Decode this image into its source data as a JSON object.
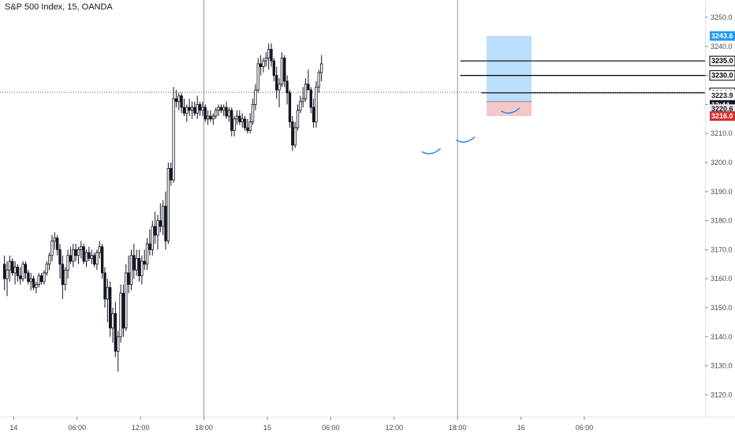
{
  "header": {
    "title": "S&P 500 Index, 15, OANDA"
  },
  "colors": {
    "candle": "#131722",
    "background": "#ffffff",
    "axis_text": "#4a4a4a",
    "target_zone": "#bbdefb",
    "stop_zone": "#f4c7c9",
    "target_label": "#2196f3",
    "stop_label": "#d32f2f",
    "annotation_arc": "#1e88e5",
    "price_line": "#555555"
  },
  "chart_data": {
    "type": "candlestick",
    "title": "S&P 500 Index, 15, OANDA",
    "xlabel": "",
    "ylabel": "",
    "ylim": [
      3115,
      3255
    ],
    "grid": false,
    "y_ticks": [
      "3250.0",
      "3240.0",
      "3230.0",
      "3220.0",
      "3210.0",
      "3200.0",
      "3190.0",
      "3180.0",
      "3170.0",
      "3160.0",
      "3150.0",
      "3140.0",
      "3130.0",
      "3120.0"
    ],
    "x_ticks": [
      {
        "label": "14",
        "bar": 4
      },
      {
        "label": "06:00",
        "bar": 28
      },
      {
        "label": "12:00",
        "bar": 52
      },
      {
        "label": "18:00",
        "bar": 76
      },
      {
        "label": "15",
        "bar": 100
      },
      {
        "label": "06:00",
        "bar": 124
      },
      {
        "label": "12:00",
        "bar": 148
      },
      {
        "label": "18:00",
        "bar": 172
      },
      {
        "label": "16",
        "bar": 196
      },
      {
        "label": "06:00",
        "bar": 220
      }
    ],
    "session_lines_bar": [
      76,
      172
    ],
    "price_labels": [
      {
        "text": "3243.6",
        "value": 3243.6,
        "style": "target"
      },
      {
        "text": "3235.0",
        "value": 3235.0,
        "style": "level"
      },
      {
        "text": "3230.0",
        "value": 3230.0,
        "style": "level"
      },
      {
        "text": "3224.0",
        "value": 3224.0,
        "style": "level"
      },
      {
        "text": "3223.9",
        "value": 3223.9,
        "style": "plain"
      },
      {
        "text": "12:44",
        "value": 3221.2,
        "style": "dark"
      },
      {
        "text": "3220.6",
        "value": 3220.6,
        "style": "grey"
      },
      {
        "text": "3216.0",
        "value": 3216.0,
        "style": "stop"
      }
    ],
    "levels": [
      {
        "value": 3235.0,
        "from_bar": 173
      },
      {
        "value": 3230.0,
        "from_bar": 173
      },
      {
        "value": 3224.0,
        "from_bar": 181
      }
    ],
    "position": {
      "entry": 3221.0,
      "target": 3243.6,
      "stop": 3216.0,
      "from_bar": 183,
      "to_bar": 200
    },
    "crosshair_value": 3224.2,
    "candles": [
      {
        "o": 3165,
        "h": 3168,
        "l": 3156,
        "c": 3160
      },
      {
        "o": 3160,
        "h": 3166,
        "l": 3154,
        "c": 3163
      },
      {
        "o": 3163,
        "h": 3168,
        "l": 3159,
        "c": 3166
      },
      {
        "o": 3166,
        "h": 3167,
        "l": 3161,
        "c": 3162
      },
      {
        "o": 3162,
        "h": 3166,
        "l": 3158,
        "c": 3164
      },
      {
        "o": 3164,
        "h": 3165,
        "l": 3159,
        "c": 3161
      },
      {
        "o": 3161,
        "h": 3164,
        "l": 3158,
        "c": 3160
      },
      {
        "o": 3160,
        "h": 3166,
        "l": 3159,
        "c": 3165
      },
      {
        "o": 3165,
        "h": 3166,
        "l": 3160,
        "c": 3162
      },
      {
        "o": 3162,
        "h": 3163,
        "l": 3158,
        "c": 3159
      },
      {
        "o": 3159,
        "h": 3162,
        "l": 3156,
        "c": 3160
      },
      {
        "o": 3160,
        "h": 3161,
        "l": 3156,
        "c": 3157
      },
      {
        "o": 3157,
        "h": 3159,
        "l": 3155,
        "c": 3158
      },
      {
        "o": 3158,
        "h": 3162,
        "l": 3157,
        "c": 3161
      },
      {
        "o": 3161,
        "h": 3162,
        "l": 3158,
        "c": 3159
      },
      {
        "o": 3159,
        "h": 3163,
        "l": 3158,
        "c": 3162
      },
      {
        "o": 3162,
        "h": 3166,
        "l": 3161,
        "c": 3165
      },
      {
        "o": 3165,
        "h": 3169,
        "l": 3163,
        "c": 3168
      },
      {
        "o": 3168,
        "h": 3175,
        "l": 3166,
        "c": 3173
      },
      {
        "o": 3173,
        "h": 3176,
        "l": 3170,
        "c": 3174
      },
      {
        "o": 3174,
        "h": 3175,
        "l": 3168,
        "c": 3170
      },
      {
        "o": 3170,
        "h": 3172,
        "l": 3160,
        "c": 3165
      },
      {
        "o": 3165,
        "h": 3168,
        "l": 3153,
        "c": 3158
      },
      {
        "o": 3158,
        "h": 3164,
        "l": 3156,
        "c": 3163
      },
      {
        "o": 3163,
        "h": 3170,
        "l": 3160,
        "c": 3168
      },
      {
        "o": 3168,
        "h": 3171,
        "l": 3165,
        "c": 3166
      },
      {
        "o": 3166,
        "h": 3172,
        "l": 3164,
        "c": 3170
      },
      {
        "o": 3170,
        "h": 3172,
        "l": 3166,
        "c": 3168
      },
      {
        "o": 3168,
        "h": 3171,
        "l": 3165,
        "c": 3170
      },
      {
        "o": 3170,
        "h": 3173,
        "l": 3167,
        "c": 3171
      },
      {
        "o": 3171,
        "h": 3172,
        "l": 3165,
        "c": 3166
      },
      {
        "o": 3166,
        "h": 3170,
        "l": 3164,
        "c": 3169
      },
      {
        "o": 3169,
        "h": 3171,
        "l": 3166,
        "c": 3167
      },
      {
        "o": 3167,
        "h": 3170,
        "l": 3165,
        "c": 3168
      },
      {
        "o": 3168,
        "h": 3169,
        "l": 3164,
        "c": 3165
      },
      {
        "o": 3165,
        "h": 3170,
        "l": 3163,
        "c": 3169
      },
      {
        "o": 3169,
        "h": 3173,
        "l": 3167,
        "c": 3171
      },
      {
        "o": 3171,
        "h": 3172,
        "l": 3160,
        "c": 3162
      },
      {
        "o": 3162,
        "h": 3164,
        "l": 3150,
        "c": 3153
      },
      {
        "o": 3153,
        "h": 3160,
        "l": 3145,
        "c": 3157
      },
      {
        "o": 3157,
        "h": 3159,
        "l": 3140,
        "c": 3143
      },
      {
        "o": 3143,
        "h": 3150,
        "l": 3138,
        "c": 3148
      },
      {
        "o": 3148,
        "h": 3152,
        "l": 3133,
        "c": 3135
      },
      {
        "o": 3135,
        "h": 3142,
        "l": 3128,
        "c": 3140
      },
      {
        "o": 3140,
        "h": 3158,
        "l": 3138,
        "c": 3155
      },
      {
        "o": 3155,
        "h": 3158,
        "l": 3140,
        "c": 3143
      },
      {
        "o": 3143,
        "h": 3165,
        "l": 3142,
        "c": 3162
      },
      {
        "o": 3162,
        "h": 3168,
        "l": 3155,
        "c": 3158
      },
      {
        "o": 3158,
        "h": 3170,
        "l": 3156,
        "c": 3168
      },
      {
        "o": 3168,
        "h": 3172,
        "l": 3160,
        "c": 3163
      },
      {
        "o": 3163,
        "h": 3170,
        "l": 3161,
        "c": 3167
      },
      {
        "o": 3167,
        "h": 3170,
        "l": 3159,
        "c": 3161
      },
      {
        "o": 3161,
        "h": 3168,
        "l": 3158,
        "c": 3166
      },
      {
        "o": 3166,
        "h": 3170,
        "l": 3163,
        "c": 3165
      },
      {
        "o": 3165,
        "h": 3174,
        "l": 3163,
        "c": 3172
      },
      {
        "o": 3172,
        "h": 3177,
        "l": 3168,
        "c": 3170
      },
      {
        "o": 3170,
        "h": 3180,
        "l": 3168,
        "c": 3178
      },
      {
        "o": 3178,
        "h": 3183,
        "l": 3172,
        "c": 3175
      },
      {
        "o": 3175,
        "h": 3182,
        "l": 3170,
        "c": 3180
      },
      {
        "o": 3180,
        "h": 3186,
        "l": 3176,
        "c": 3178
      },
      {
        "o": 3178,
        "h": 3187,
        "l": 3175,
        "c": 3185
      },
      {
        "o": 3185,
        "h": 3190,
        "l": 3170,
        "c": 3173
      },
      {
        "o": 3173,
        "h": 3200,
        "l": 3172,
        "c": 3198
      },
      {
        "o": 3198,
        "h": 3200,
        "l": 3192,
        "c": 3194
      },
      {
        "o": 3194,
        "h": 3226,
        "l": 3193,
        "c": 3222
      },
      {
        "o": 3222,
        "h": 3225,
        "l": 3219,
        "c": 3221
      },
      {
        "o": 3221,
        "h": 3224,
        "l": 3218,
        "c": 3223
      },
      {
        "o": 3223,
        "h": 3224,
        "l": 3217,
        "c": 3219
      },
      {
        "o": 3219,
        "h": 3222,
        "l": 3216,
        "c": 3217
      },
      {
        "o": 3217,
        "h": 3220,
        "l": 3214,
        "c": 3219
      },
      {
        "o": 3219,
        "h": 3222,
        "l": 3216,
        "c": 3218
      },
      {
        "o": 3218,
        "h": 3221,
        "l": 3215,
        "c": 3219
      },
      {
        "o": 3219,
        "h": 3221,
        "l": 3216,
        "c": 3217
      },
      {
        "o": 3217,
        "h": 3223,
        "l": 3215,
        "c": 3220
      },
      {
        "o": 3220,
        "h": 3221,
        "l": 3216,
        "c": 3218
      },
      {
        "o": 3218,
        "h": 3221,
        "l": 3216,
        "c": 3219
      },
      {
        "o": 3219,
        "h": 3220,
        "l": 3214,
        "c": 3215
      },
      {
        "o": 3215,
        "h": 3218,
        "l": 3213,
        "c": 3216
      },
      {
        "o": 3216,
        "h": 3218,
        "l": 3214,
        "c": 3215
      },
      {
        "o": 3215,
        "h": 3217,
        "l": 3213,
        "c": 3216
      },
      {
        "o": 3216,
        "h": 3219,
        "l": 3215,
        "c": 3218
      },
      {
        "o": 3218,
        "h": 3220,
        "l": 3216,
        "c": 3219
      },
      {
        "o": 3219,
        "h": 3220,
        "l": 3217,
        "c": 3218
      },
      {
        "o": 3218,
        "h": 3220,
        "l": 3216,
        "c": 3219
      },
      {
        "o": 3219,
        "h": 3221,
        "l": 3215,
        "c": 3216
      },
      {
        "o": 3216,
        "h": 3219,
        "l": 3214,
        "c": 3218
      },
      {
        "o": 3218,
        "h": 3219,
        "l": 3209,
        "c": 3211
      },
      {
        "o": 3211,
        "h": 3216,
        "l": 3209,
        "c": 3215
      },
      {
        "o": 3215,
        "h": 3218,
        "l": 3213,
        "c": 3216
      },
      {
        "o": 3216,
        "h": 3218,
        "l": 3213,
        "c": 3214
      },
      {
        "o": 3214,
        "h": 3217,
        "l": 3212,
        "c": 3215
      },
      {
        "o": 3215,
        "h": 3216,
        "l": 3211,
        "c": 3212
      },
      {
        "o": 3212,
        "h": 3215,
        "l": 3210,
        "c": 3211
      },
      {
        "o": 3211,
        "h": 3217,
        "l": 3210,
        "c": 3214
      },
      {
        "o": 3214,
        "h": 3222,
        "l": 3213,
        "c": 3220
      },
      {
        "o": 3220,
        "h": 3227,
        "l": 3218,
        "c": 3225
      },
      {
        "o": 3225,
        "h": 3236,
        "l": 3224,
        "c": 3234
      },
      {
        "o": 3234,
        "h": 3237,
        "l": 3230,
        "c": 3233
      },
      {
        "o": 3233,
        "h": 3236,
        "l": 3231,
        "c": 3235
      },
      {
        "o": 3235,
        "h": 3238,
        "l": 3233,
        "c": 3236
      },
      {
        "o": 3236,
        "h": 3241,
        "l": 3232,
        "c": 3239
      },
      {
        "o": 3239,
        "h": 3241,
        "l": 3233,
        "c": 3235
      },
      {
        "o": 3235,
        "h": 3236,
        "l": 3228,
        "c": 3230
      },
      {
        "o": 3230,
        "h": 3233,
        "l": 3222,
        "c": 3225
      },
      {
        "o": 3225,
        "h": 3229,
        "l": 3219,
        "c": 3227
      },
      {
        "o": 3227,
        "h": 3238,
        "l": 3226,
        "c": 3236
      },
      {
        "o": 3236,
        "h": 3237,
        "l": 3226,
        "c": 3228
      },
      {
        "o": 3228,
        "h": 3230,
        "l": 3220,
        "c": 3224
      },
      {
        "o": 3224,
        "h": 3225,
        "l": 3212,
        "c": 3214
      },
      {
        "o": 3214,
        "h": 3216,
        "l": 3204,
        "c": 3206
      },
      {
        "o": 3206,
        "h": 3214,
        "l": 3205,
        "c": 3212
      },
      {
        "o": 3212,
        "h": 3220,
        "l": 3211,
        "c": 3218
      },
      {
        "o": 3218,
        "h": 3223,
        "l": 3217,
        "c": 3221
      },
      {
        "o": 3221,
        "h": 3226,
        "l": 3219,
        "c": 3222
      },
      {
        "o": 3222,
        "h": 3229,
        "l": 3221,
        "c": 3227
      },
      {
        "o": 3227,
        "h": 3232,
        "l": 3225,
        "c": 3225
      },
      {
        "o": 3225,
        "h": 3226,
        "l": 3217,
        "c": 3219
      },
      {
        "o": 3219,
        "h": 3222,
        "l": 3212,
        "c": 3214
      },
      {
        "o": 3214,
        "h": 3228,
        "l": 3212,
        "c": 3226
      },
      {
        "o": 3226,
        "h": 3232,
        "l": 3224,
        "c": 3231
      },
      {
        "o": 3231,
        "h": 3237,
        "l": 3228,
        "c": 3234
      }
    ],
    "arcs": [
      {
        "center_bar": 162,
        "value": 3203.5
      },
      {
        "center_bar": 175,
        "value": 3207.5
      },
      {
        "center_bar": 192,
        "value": 3217.5
      }
    ]
  }
}
